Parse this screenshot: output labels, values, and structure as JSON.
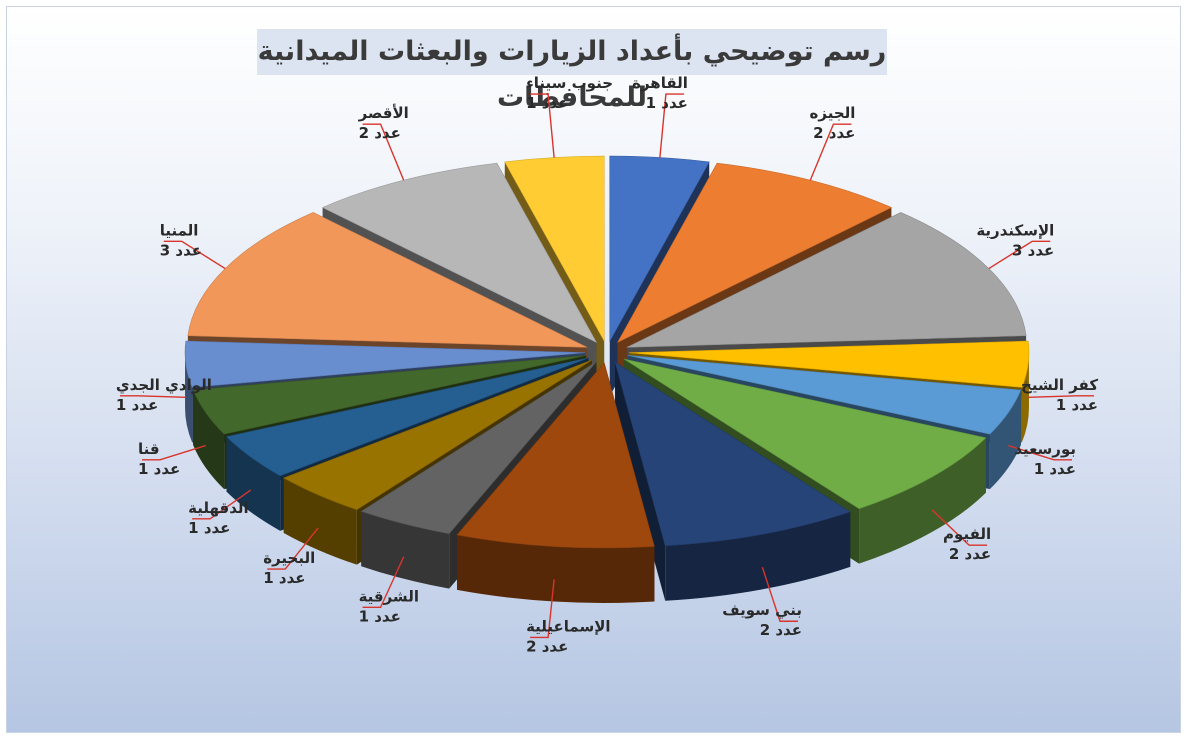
{
  "chart_data": {
    "type": "pie",
    "title": "رسم توضيحي بأعداد الزيارات والبعثات الميدانية للمحافظات",
    "count_prefix": "عدد",
    "slices": [
      {
        "label": "القاهرة",
        "value": 1,
        "color": "#4472c4"
      },
      {
        "label": "الجيزه",
        "value": 2,
        "color": "#ed7d31"
      },
      {
        "label": "الإسكندرية",
        "value": 3,
        "color": "#a5a5a5"
      },
      {
        "label": "كفر الشيخ",
        "value": 1,
        "color": "#ffc000"
      },
      {
        "label": "بورسعيد",
        "value": 1,
        "color": "#5b9bd5"
      },
      {
        "label": "الفيوم",
        "value": 2,
        "color": "#70ad47"
      },
      {
        "label": "بني سويف",
        "value": 2,
        "color": "#264478"
      },
      {
        "label": "الإسماعيلية",
        "value": 2,
        "color": "#9e480e"
      },
      {
        "label": "الشرقية",
        "value": 1,
        "color": "#636363"
      },
      {
        "label": "البحيرة",
        "value": 1,
        "color": "#997300"
      },
      {
        "label": "الدقهلية",
        "value": 1,
        "color": "#255e91"
      },
      {
        "label": "قنا",
        "value": 1,
        "color": "#43682b"
      },
      {
        "label": "الوادي الجدي",
        "value": 1,
        "color": "#698ed0"
      },
      {
        "label": "المنيا",
        "value": 3,
        "color": "#f1975a"
      },
      {
        "label": "الأقصر",
        "value": 2,
        "color": "#b7b7b7"
      },
      {
        "label": "جنوب سيناء",
        "value": 1,
        "color": "#ffcd33"
      }
    ],
    "leader_line_color": "#d9342b",
    "explode_slices": true,
    "style": "3d-pie"
  }
}
